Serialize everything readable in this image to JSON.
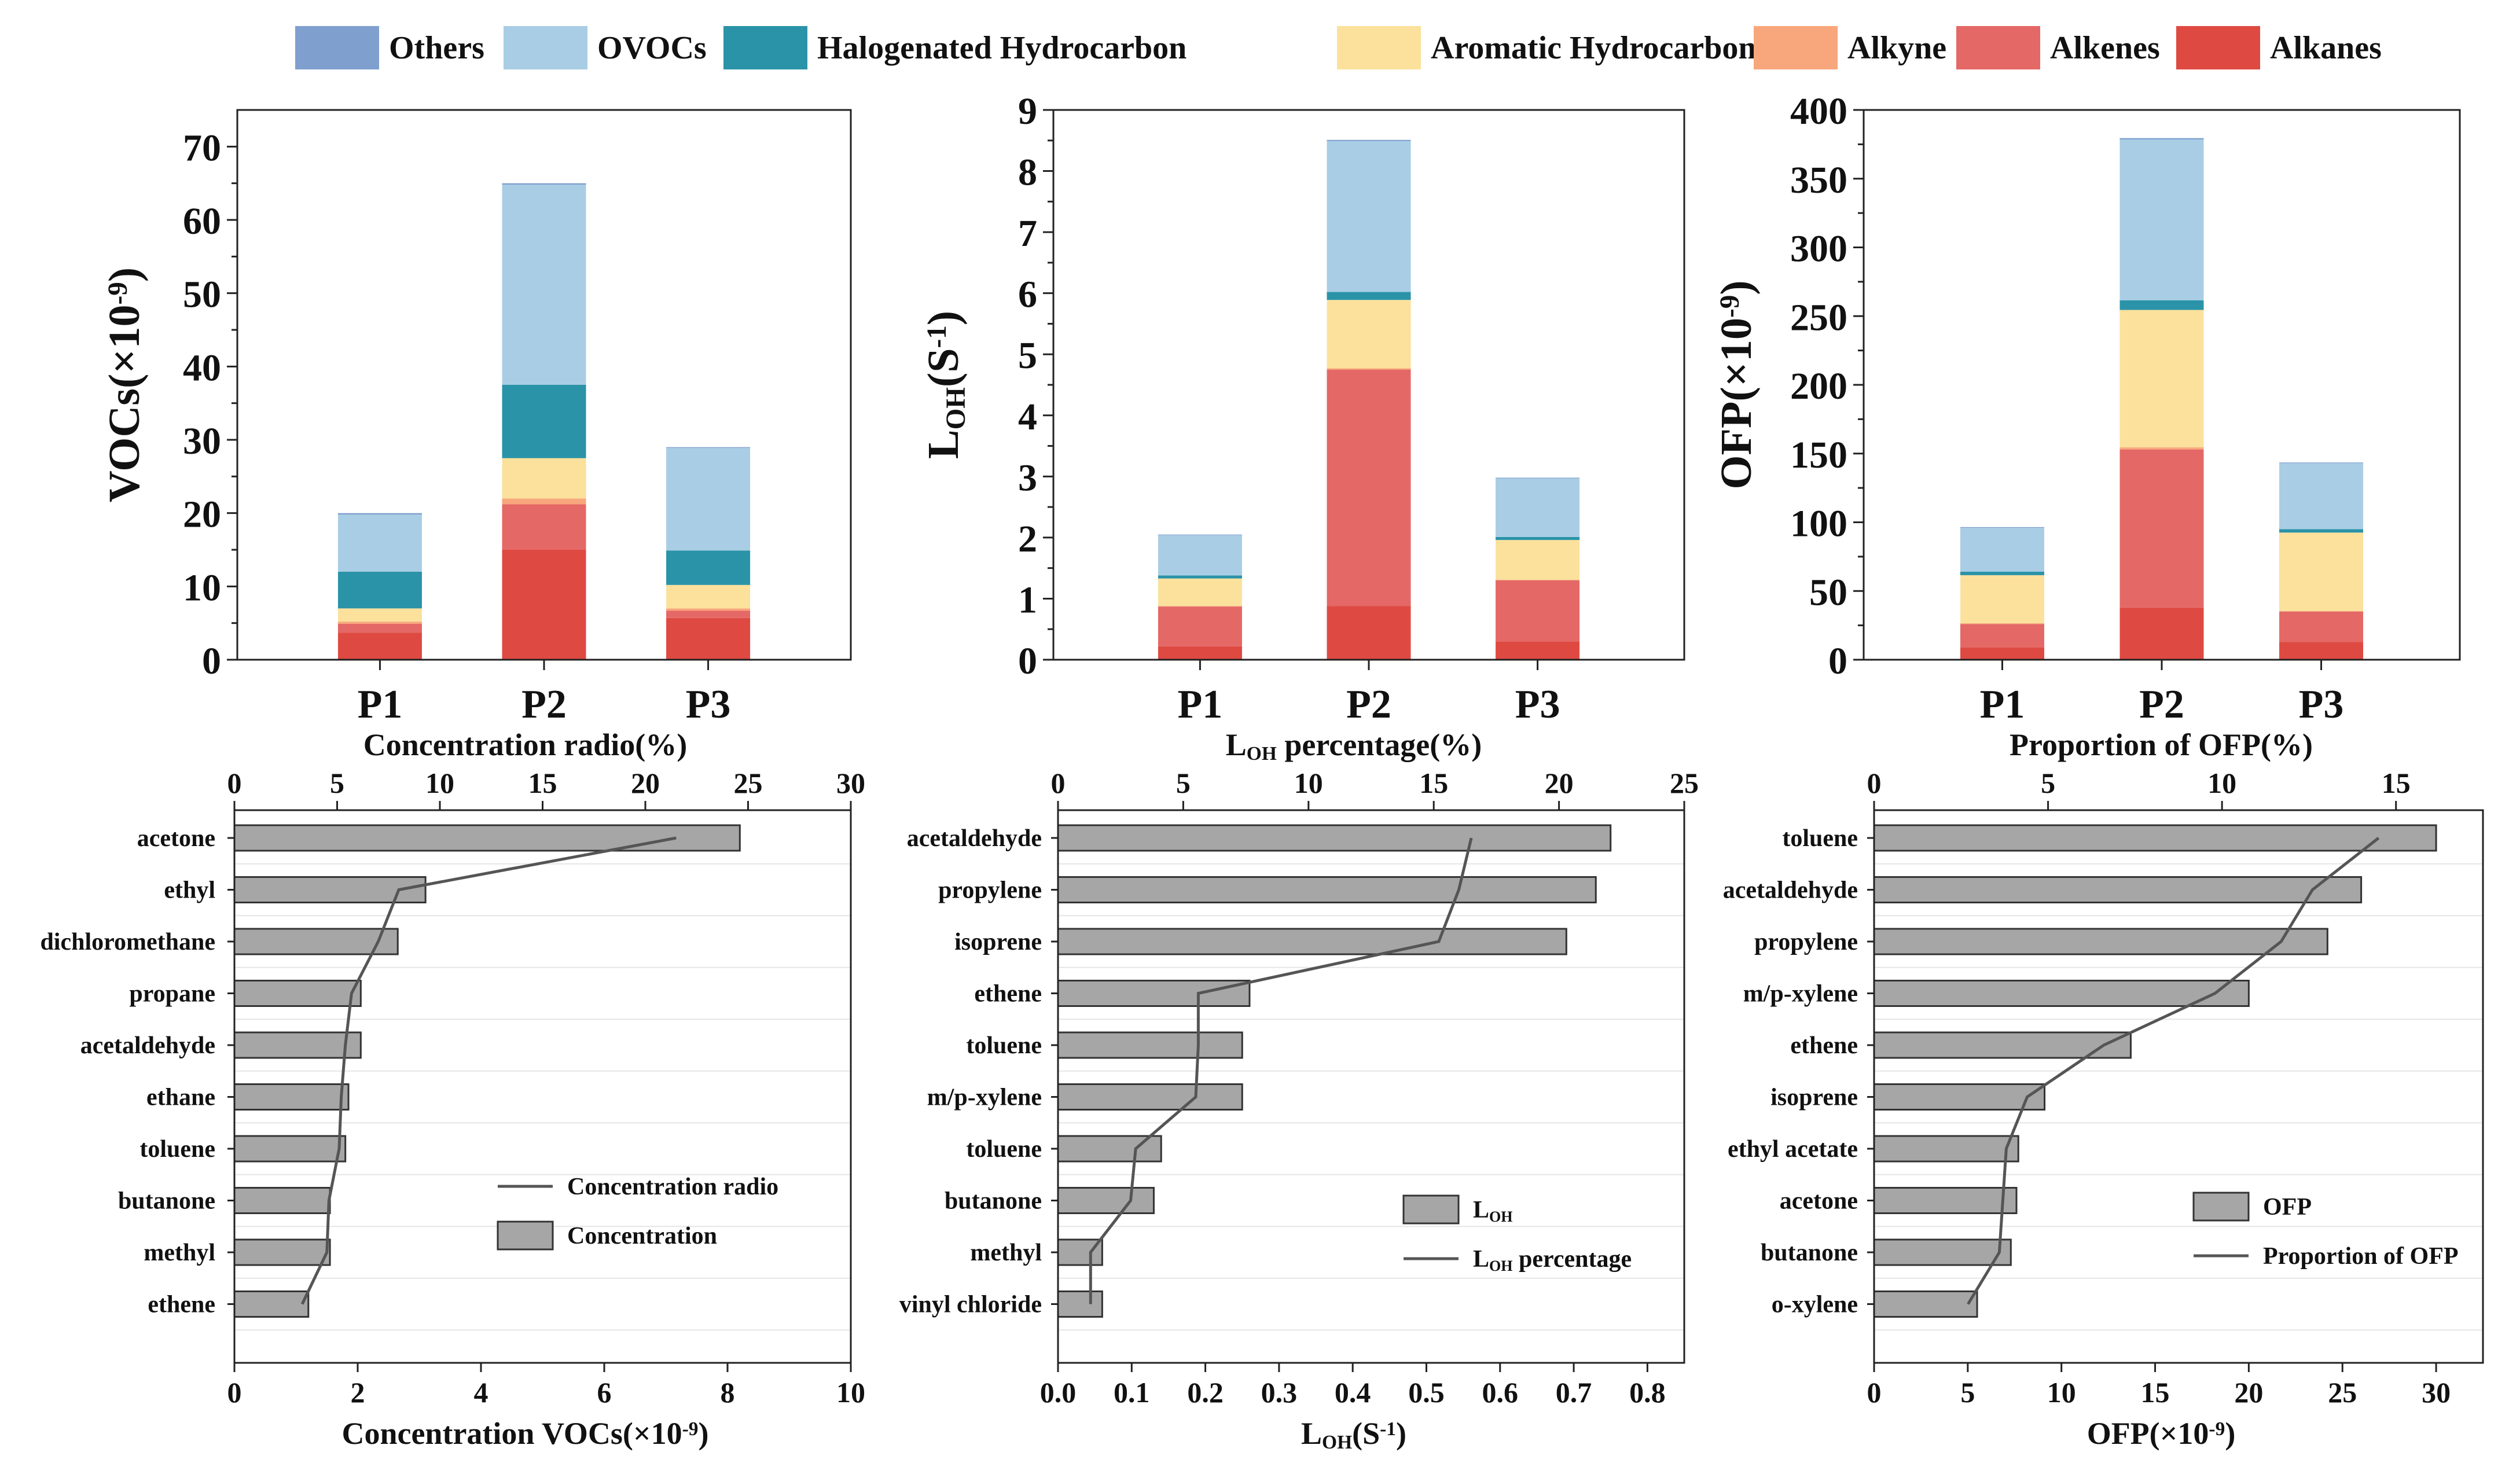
{
  "legend": [
    {
      "name": "Others",
      "color": "#7f9fcf"
    },
    {
      "name": "OVOCs",
      "color": "#a9cde4"
    },
    {
      "name": "Halogenated Hydrocarbon",
      "color": "#2a93a8"
    },
    {
      "name": "Aromatic Hydrocarbons",
      "color": "#fbe19c"
    },
    {
      "name": "Alkyne",
      "color": "#f8a77c"
    },
    {
      "name": "Alkenes",
      "color": "#e46866"
    },
    {
      "name": "Alkanes",
      "color": "#de4a42"
    }
  ],
  "chart_data": [
    {
      "type": "bar",
      "stacked": true,
      "panel": "top-left",
      "categories": [
        "P1",
        "P2",
        "P3"
      ],
      "ylabel": "VOCs(×10⁻⁹)",
      "ylim": [
        0,
        75
      ],
      "yticks": [
        0,
        10,
        20,
        30,
        40,
        50,
        60,
        70
      ],
      "series": [
        {
          "name": "Alkanes",
          "values": [
            3.7,
            15.0,
            5.7
          ]
        },
        {
          "name": "Alkenes",
          "values": [
            1.2,
            6.2,
            1.0
          ]
        },
        {
          "name": "Alkyne",
          "values": [
            0.3,
            0.8,
            0.3
          ]
        },
        {
          "name": "Aromatic Hydrocarbons",
          "values": [
            1.8,
            5.5,
            3.2
          ]
        },
        {
          "name": "Halogenated Hydrocarbon",
          "values": [
            5.0,
            10.0,
            4.7
          ]
        },
        {
          "name": "OVOCs",
          "values": [
            7.8,
            27.3,
            14.0
          ]
        },
        {
          "name": "Others",
          "values": [
            0.2,
            0.2,
            0.1
          ]
        }
      ]
    },
    {
      "type": "bar",
      "stacked": true,
      "panel": "top-middle",
      "categories": [
        "P1",
        "P2",
        "P3"
      ],
      "ylabel": "LOH(S-1)",
      "ylim": [
        0,
        9
      ],
      "yticks": [
        0,
        1,
        2,
        3,
        4,
        5,
        6,
        7,
        8,
        9
      ],
      "series": [
        {
          "name": "Alkanes",
          "values": [
            0.22,
            0.88,
            0.3
          ]
        },
        {
          "name": "Alkenes",
          "values": [
            0.65,
            3.87,
            1.0
          ]
        },
        {
          "name": "Alkyne",
          "values": [
            0.01,
            0.02,
            0.01
          ]
        },
        {
          "name": "Aromatic Hydrocarbons",
          "values": [
            0.45,
            1.12,
            0.65
          ]
        },
        {
          "name": "Halogenated Hydrocarbon",
          "values": [
            0.05,
            0.13,
            0.05
          ]
        },
        {
          "name": "OVOCs",
          "values": [
            0.66,
            2.47,
            0.96
          ]
        },
        {
          "name": "Others",
          "values": [
            0.01,
            0.02,
            0.01
          ]
        }
      ]
    },
    {
      "type": "bar",
      "stacked": true,
      "panel": "top-right",
      "categories": [
        "P1",
        "P2",
        "P3"
      ],
      "ylabel": "OFP(×10⁻⁹)",
      "ylim": [
        0,
        400
      ],
      "yticks": [
        0,
        50,
        100,
        150,
        200,
        250,
        300,
        350,
        400
      ],
      "series": [
        {
          "name": "Alkanes",
          "values": [
            9,
            38,
            13
          ]
        },
        {
          "name": "Alkenes",
          "values": [
            17,
            115,
            22
          ]
        },
        {
          "name": "Alkyne",
          "values": [
            0.5,
            1.5,
            0.5
          ]
        },
        {
          "name": "Aromatic Hydrocarbons",
          "values": [
            35,
            100,
            57
          ]
        },
        {
          "name": "Halogenated Hydrocarbon",
          "values": [
            2.5,
            7,
            2.5
          ]
        },
        {
          "name": "OVOCs",
          "values": [
            32,
            117,
            48
          ]
        },
        {
          "name": "Others",
          "values": [
            0.5,
            1,
            0.5
          ]
        }
      ]
    },
    {
      "type": "bar",
      "orientation": "horizontal",
      "panel": "bottom-left",
      "categories": [
        "acetone",
        "ethyl",
        "dichloromethane",
        "propane",
        "acetaldehyde",
        "ethane",
        "toluene",
        "butanone",
        "methyl",
        "ethene"
      ],
      "bar_series": {
        "name": "Concentration",
        "values": [
          8.2,
          3.1,
          2.65,
          2.05,
          2.05,
          1.85,
          1.8,
          1.55,
          1.55,
          1.2
        ]
      },
      "line_series": {
        "name": "Concentration radio",
        "values": [
          21.5,
          8.0,
          7.0,
          5.7,
          5.4,
          5.2,
          5.1,
          4.6,
          4.5,
          3.3
        ]
      },
      "xlabel_bottom": "Concentration VOCs(×10⁻⁹)",
      "xlim_bottom": [
        0,
        10
      ],
      "xticks_bottom": [
        0,
        2,
        4,
        6,
        8,
        10
      ],
      "xlabel_top": "Concentration radio(%)",
      "xlim_top": [
        0,
        30
      ],
      "xticks_top": [
        0,
        5,
        10,
        15,
        20,
        25,
        30
      ],
      "legend": [
        "Concentration radio",
        "Concentration"
      ]
    },
    {
      "type": "bar",
      "orientation": "horizontal",
      "panel": "bottom-middle",
      "categories": [
        "acetaldehyde",
        "propylene",
        "isoprene",
        "ethene",
        "toluene",
        "m/p-xylene",
        "toluene",
        "butanone",
        "methyl",
        "vinyl chloride"
      ],
      "bar_series": {
        "name": "LOH",
        "values": [
          0.75,
          0.73,
          0.69,
          0.26,
          0.25,
          0.25,
          0.14,
          0.13,
          0.06,
          0.06
        ]
      },
      "line_series": {
        "name": "LOH  percentage",
        "values": [
          16.5,
          16.0,
          15.2,
          5.6,
          5.6,
          5.5,
          3.1,
          2.9,
          1.3,
          1.3
        ]
      },
      "xlabel_bottom": "LOH(S-1)",
      "xlim_bottom": [
        0,
        0.85
      ],
      "xticks_bottom": [
        0.0,
        0.1,
        0.2,
        0.3,
        0.4,
        0.5,
        0.6,
        0.7,
        0.8
      ],
      "xlabel_top": "LOH  percentage(%)",
      "xlim_top": [
        0,
        25
      ],
      "xticks_top": [
        0,
        5,
        10,
        15,
        20,
        25
      ],
      "legend": [
        "LOH",
        "LOH  percentage"
      ]
    },
    {
      "type": "bar",
      "orientation": "horizontal",
      "panel": "bottom-right",
      "categories": [
        "toluene",
        "acetaldehyde",
        "propylene",
        "m/p-xylene",
        "ethene",
        "isoprene",
        "ethyl acetate",
        "acetone",
        "butanone",
        "o-xylene"
      ],
      "bar_series": {
        "name": "OFP",
        "values": [
          30.0,
          26.0,
          24.2,
          20.0,
          13.7,
          9.1,
          7.7,
          7.6,
          7.3,
          5.5
        ]
      },
      "line_series": {
        "name": "Proportion of OFP",
        "values": [
          14.5,
          12.6,
          11.7,
          9.8,
          6.6,
          4.4,
          3.8,
          3.7,
          3.6,
          2.7
        ]
      },
      "xlabel_bottom": "OFP(×10⁻⁹)",
      "xlim_bottom": [
        0,
        32.5
      ],
      "xticks_bottom": [
        0,
        5,
        10,
        15,
        20,
        25,
        30
      ],
      "xlabel_top": "Proportion of OFP(%)",
      "xlim_top": [
        0,
        17.5
      ],
      "xticks_top": [
        0,
        5,
        10,
        15
      ],
      "legend": [
        "OFP",
        "Proportion of OFP"
      ]
    }
  ]
}
